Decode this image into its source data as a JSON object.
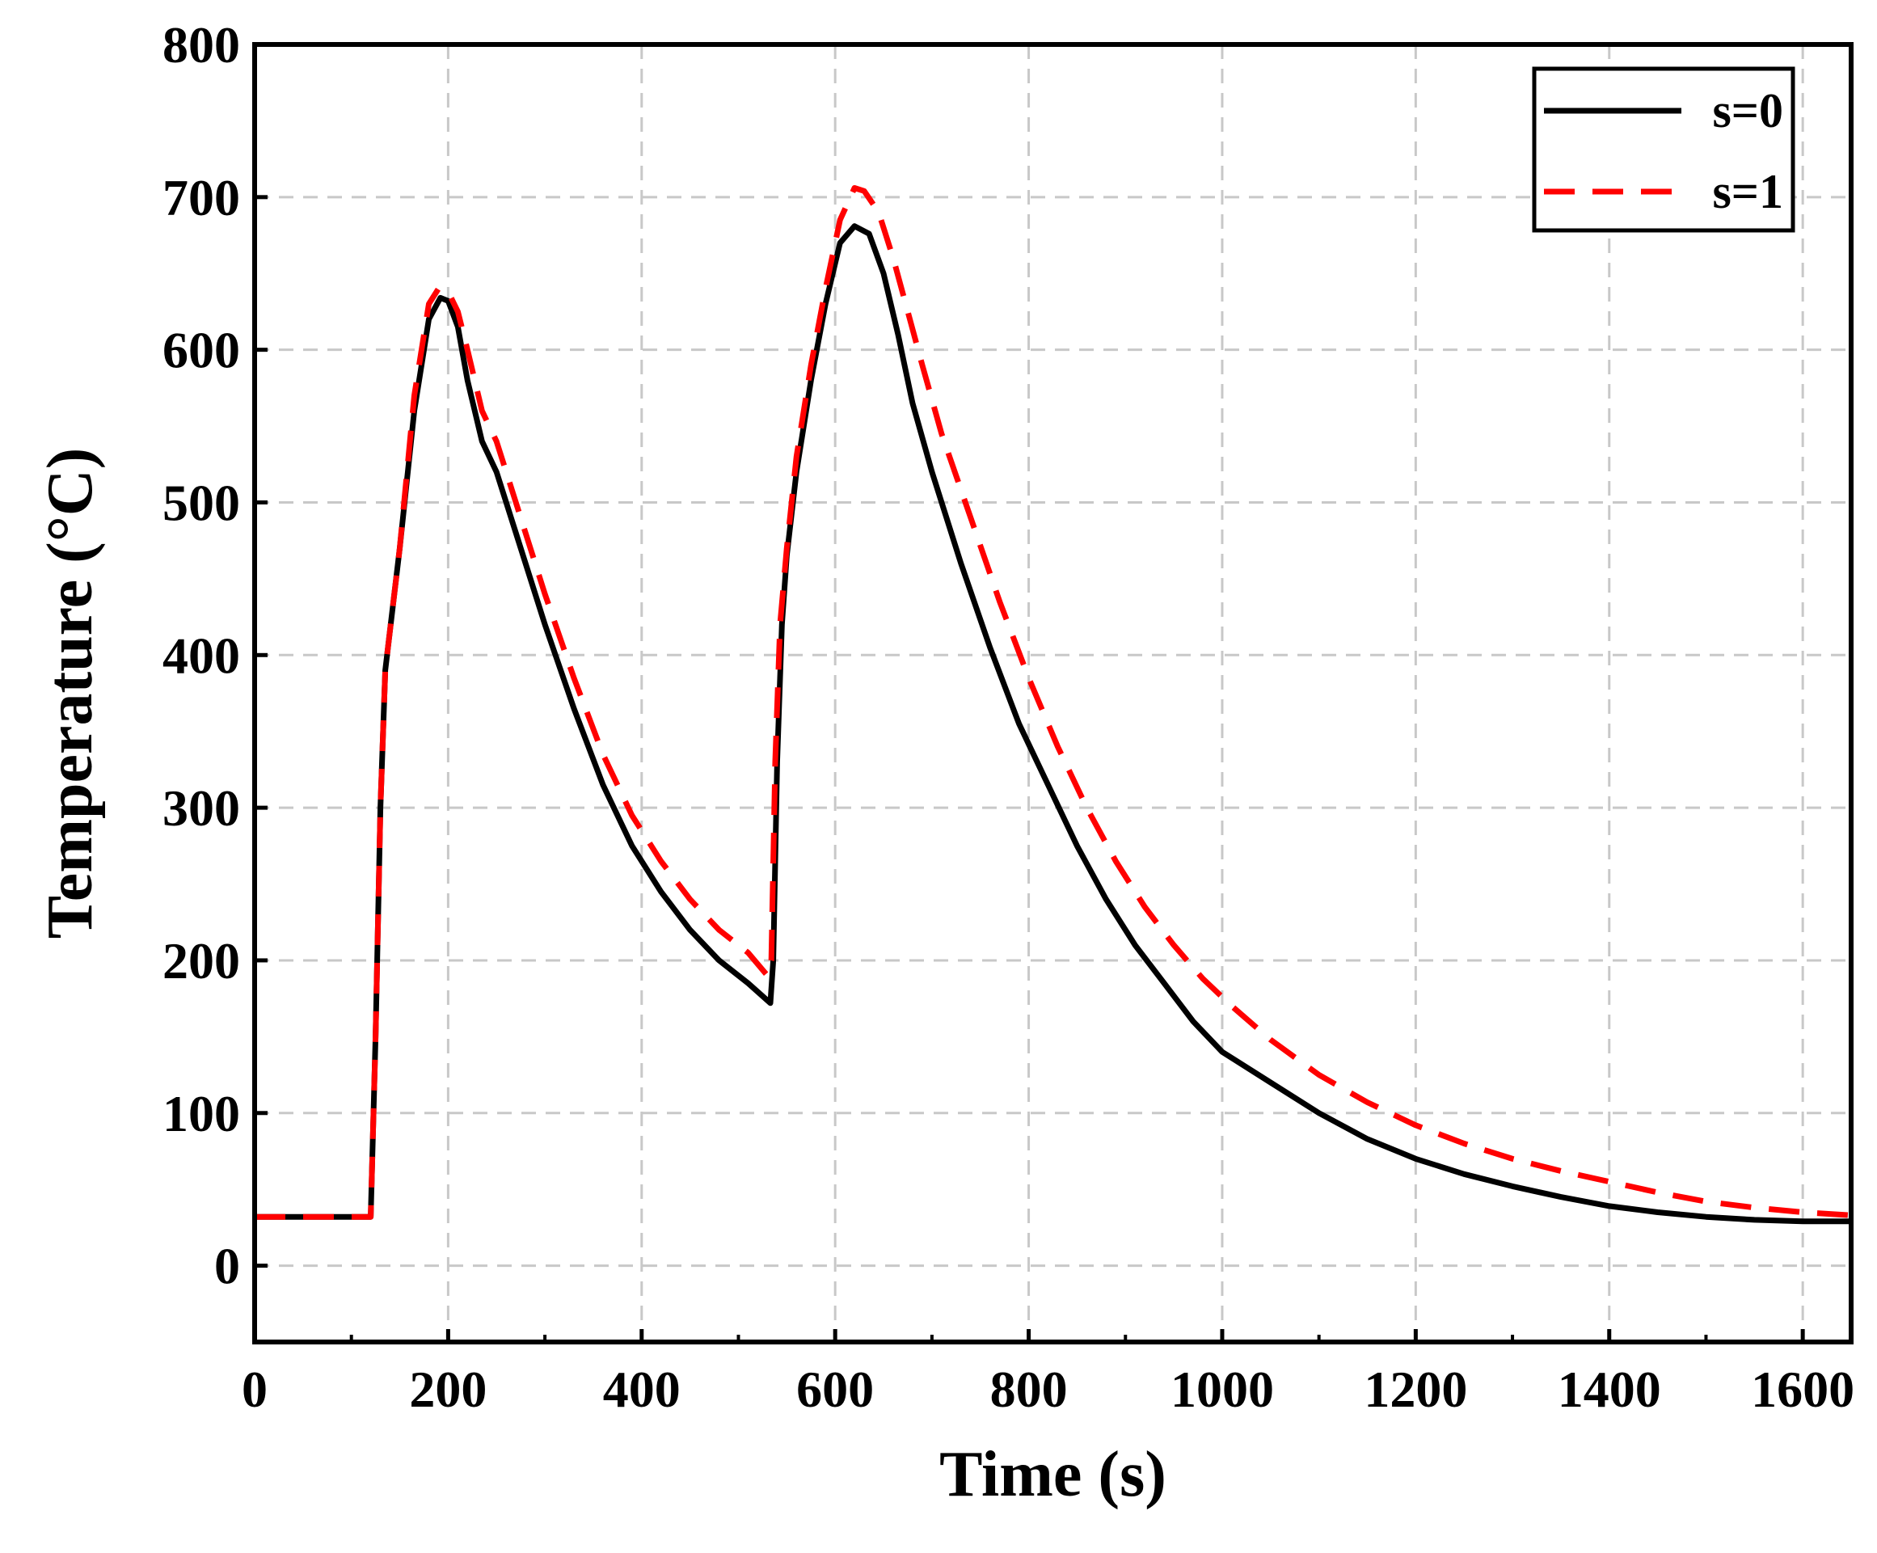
{
  "chart_data": {
    "type": "line",
    "title": "",
    "xlabel": "Time (s)",
    "ylabel": "Temperature (°C)",
    "xlim": [
      0,
      1650
    ],
    "ylim": [
      -50,
      800
    ],
    "xticks": [
      0,
      200,
      400,
      600,
      800,
      1000,
      1200,
      1400,
      1600
    ],
    "yticks": [
      0,
      100,
      200,
      300,
      400,
      500,
      600,
      700,
      800
    ],
    "grid": true,
    "legend_position": "top-right",
    "series": [
      {
        "name": "s=0",
        "color": "#000000",
        "style": "solid",
        "points": [
          [
            0,
            32
          ],
          [
            120,
            32
          ],
          [
            125,
            150
          ],
          [
            130,
            300
          ],
          [
            135,
            390
          ],
          [
            150,
            470
          ],
          [
            165,
            560
          ],
          [
            180,
            620
          ],
          [
            192,
            634
          ],
          [
            200,
            632
          ],
          [
            210,
            615
          ],
          [
            220,
            580
          ],
          [
            235,
            540
          ],
          [
            250,
            520
          ],
          [
            270,
            480
          ],
          [
            300,
            420
          ],
          [
            330,
            365
          ],
          [
            360,
            315
          ],
          [
            390,
            275
          ],
          [
            420,
            245
          ],
          [
            450,
            220
          ],
          [
            480,
            200
          ],
          [
            510,
            185
          ],
          [
            533,
            172
          ],
          [
            536,
            200
          ],
          [
            540,
            330
          ],
          [
            545,
            420
          ],
          [
            550,
            465
          ],
          [
            560,
            520
          ],
          [
            575,
            580
          ],
          [
            590,
            630
          ],
          [
            605,
            670
          ],
          [
            620,
            681
          ],
          [
            635,
            676
          ],
          [
            650,
            650
          ],
          [
            665,
            610
          ],
          [
            680,
            565
          ],
          [
            700,
            520
          ],
          [
            730,
            460
          ],
          [
            760,
            405
          ],
          [
            790,
            355
          ],
          [
            820,
            315
          ],
          [
            850,
            275
          ],
          [
            880,
            240
          ],
          [
            910,
            210
          ],
          [
            940,
            185
          ],
          [
            970,
            160
          ],
          [
            1000,
            140
          ],
          [
            1050,
            120
          ],
          [
            1100,
            100
          ],
          [
            1150,
            83
          ],
          [
            1200,
            70
          ],
          [
            1250,
            60
          ],
          [
            1300,
            52
          ],
          [
            1350,
            45
          ],
          [
            1400,
            39
          ],
          [
            1450,
            35
          ],
          [
            1500,
            32
          ],
          [
            1550,
            30
          ],
          [
            1600,
            29
          ],
          [
            1650,
            29
          ]
        ]
      },
      {
        "name": "s=1",
        "color": "#ff0000",
        "style": "dashed",
        "points": [
          [
            0,
            32
          ],
          [
            120,
            32
          ],
          [
            125,
            150
          ],
          [
            130,
            300
          ],
          [
            135,
            390
          ],
          [
            150,
            470
          ],
          [
            165,
            570
          ],
          [
            180,
            630
          ],
          [
            190,
            640
          ],
          [
            200,
            638
          ],
          [
            210,
            625
          ],
          [
            220,
            600
          ],
          [
            235,
            560
          ],
          [
            250,
            540
          ],
          [
            270,
            500
          ],
          [
            300,
            440
          ],
          [
            330,
            385
          ],
          [
            360,
            335
          ],
          [
            390,
            295
          ],
          [
            420,
            265
          ],
          [
            450,
            240
          ],
          [
            480,
            220
          ],
          [
            510,
            205
          ],
          [
            530,
            190
          ],
          [
            534,
            200
          ],
          [
            538,
            330
          ],
          [
            543,
            420
          ],
          [
            550,
            470
          ],
          [
            560,
            530
          ],
          [
            575,
            590
          ],
          [
            590,
            640
          ],
          [
            605,
            685
          ],
          [
            620,
            706
          ],
          [
            630,
            704
          ],
          [
            645,
            690
          ],
          [
            660,
            660
          ],
          [
            675,
            625
          ],
          [
            690,
            590
          ],
          [
            710,
            545
          ],
          [
            740,
            490
          ],
          [
            770,
            435
          ],
          [
            800,
            385
          ],
          [
            830,
            340
          ],
          [
            860,
            300
          ],
          [
            890,
            265
          ],
          [
            920,
            235
          ],
          [
            950,
            210
          ],
          [
            980,
            188
          ],
          [
            1010,
            170
          ],
          [
            1050,
            148
          ],
          [
            1100,
            125
          ],
          [
            1150,
            107
          ],
          [
            1200,
            92
          ],
          [
            1250,
            80
          ],
          [
            1300,
            70
          ],
          [
            1350,
            62
          ],
          [
            1400,
            55
          ],
          [
            1450,
            48
          ],
          [
            1500,
            42
          ],
          [
            1550,
            38
          ],
          [
            1600,
            35
          ],
          [
            1650,
            33
          ]
        ]
      }
    ]
  }
}
